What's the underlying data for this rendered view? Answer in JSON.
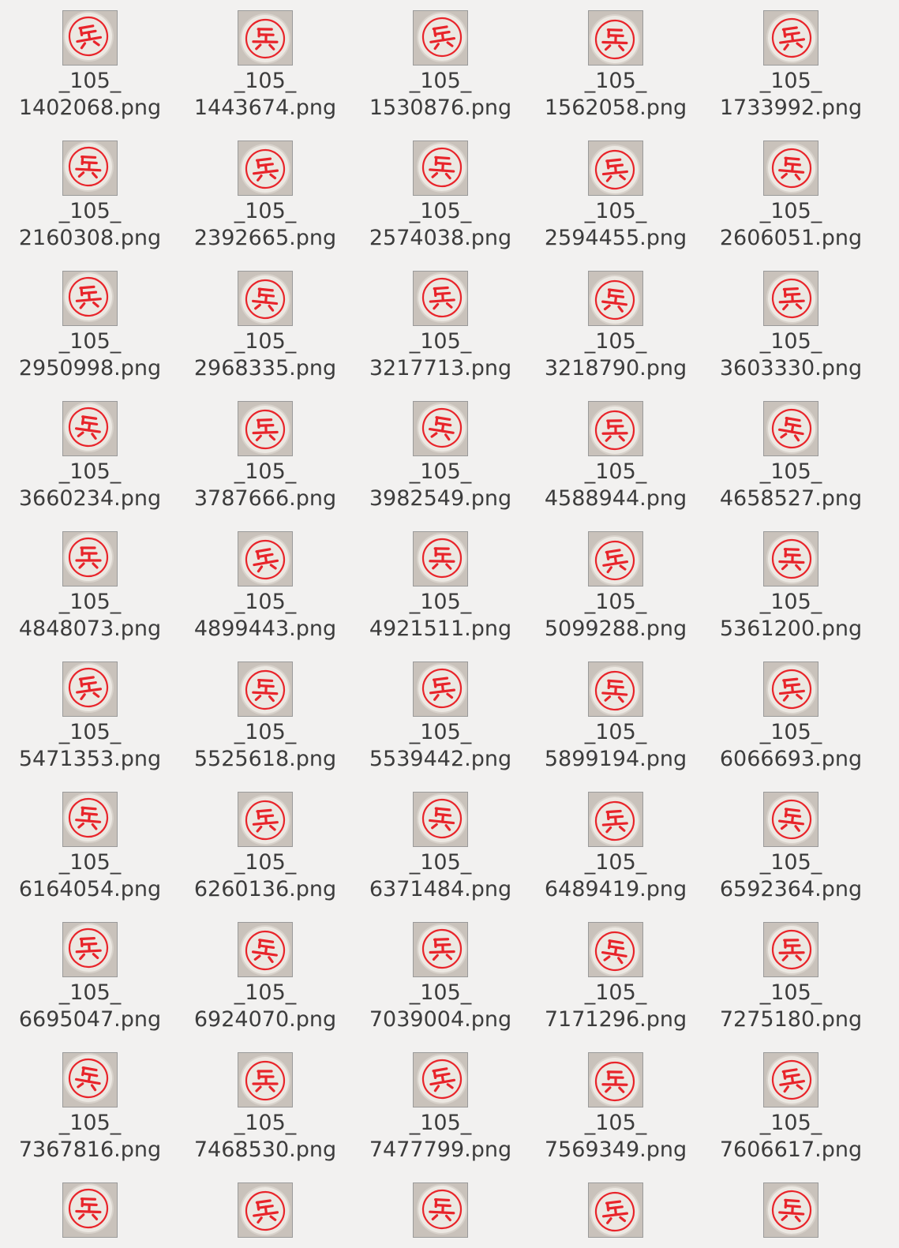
{
  "file_browser": {
    "items": [
      {
        "line1": "_105_",
        "line2": "1402068.png",
        "icon": "chess-piece-bing-thumbnail"
      },
      {
        "line1": "_105_",
        "line2": "1443674.png",
        "icon": "chess-piece-bing-thumbnail"
      },
      {
        "line1": "_105_",
        "line2": "1530876.png",
        "icon": "chess-piece-bing-thumbnail"
      },
      {
        "line1": "_105_",
        "line2": "1562058.png",
        "icon": "chess-piece-bing-thumbnail"
      },
      {
        "line1": "_105_",
        "line2": "1733992.png",
        "icon": "chess-piece-bing-thumbnail"
      },
      {
        "line1": "_105_",
        "line2": "2160308.png",
        "icon": "chess-piece-bing-thumbnail"
      },
      {
        "line1": "_105_",
        "line2": "2392665.png",
        "icon": "chess-piece-bing-thumbnail"
      },
      {
        "line1": "_105_",
        "line2": "2574038.png",
        "icon": "chess-piece-bing-thumbnail"
      },
      {
        "line1": "_105_",
        "line2": "2594455.png",
        "icon": "chess-piece-bing-thumbnail"
      },
      {
        "line1": "_105_",
        "line2": "2606051.png",
        "icon": "chess-piece-bing-thumbnail"
      },
      {
        "line1": "_105_",
        "line2": "2950998.png",
        "icon": "chess-piece-bing-thumbnail"
      },
      {
        "line1": "_105_",
        "line2": "2968335.png",
        "icon": "chess-piece-bing-thumbnail"
      },
      {
        "line1": "_105_",
        "line2": "3217713.png",
        "icon": "chess-piece-bing-thumbnail"
      },
      {
        "line1": "_105_",
        "line2": "3218790.png",
        "icon": "chess-piece-bing-thumbnail"
      },
      {
        "line1": "_105_",
        "line2": "3603330.png",
        "icon": "chess-piece-bing-thumbnail"
      },
      {
        "line1": "_105_",
        "line2": "3660234.png",
        "icon": "chess-piece-bing-thumbnail"
      },
      {
        "line1": "_105_",
        "line2": "3787666.png",
        "icon": "chess-piece-bing-thumbnail"
      },
      {
        "line1": "_105_",
        "line2": "3982549.png",
        "icon": "chess-piece-bing-thumbnail"
      },
      {
        "line1": "_105_",
        "line2": "4588944.png",
        "icon": "chess-piece-bing-thumbnail"
      },
      {
        "line1": "_105_",
        "line2": "4658527.png",
        "icon": "chess-piece-bing-thumbnail"
      },
      {
        "line1": "_105_",
        "line2": "4848073.png",
        "icon": "chess-piece-bing-thumbnail"
      },
      {
        "line1": "_105_",
        "line2": "4899443.png",
        "icon": "chess-piece-bing-thumbnail"
      },
      {
        "line1": "_105_",
        "line2": "4921511.png",
        "icon": "chess-piece-bing-thumbnail"
      },
      {
        "line1": "_105_",
        "line2": "5099288.png",
        "icon": "chess-piece-bing-thumbnail"
      },
      {
        "line1": "_105_",
        "line2": "5361200.png",
        "icon": "chess-piece-bing-thumbnail"
      },
      {
        "line1": "_105_",
        "line2": "5471353.png",
        "icon": "chess-piece-bing-thumbnail"
      },
      {
        "line1": "_105_",
        "line2": "5525618.png",
        "icon": "chess-piece-bing-thumbnail"
      },
      {
        "line1": "_105_",
        "line2": "5539442.png",
        "icon": "chess-piece-bing-thumbnail"
      },
      {
        "line1": "_105_",
        "line2": "5899194.png",
        "icon": "chess-piece-bing-thumbnail"
      },
      {
        "line1": "_105_",
        "line2": "6066693.png",
        "icon": "chess-piece-bing-thumbnail"
      },
      {
        "line1": "_105_",
        "line2": "6164054.png",
        "icon": "chess-piece-bing-thumbnail"
      },
      {
        "line1": "_105_",
        "line2": "6260136.png",
        "icon": "chess-piece-bing-thumbnail"
      },
      {
        "line1": "_105_",
        "line2": "6371484.png",
        "icon": "chess-piece-bing-thumbnail"
      },
      {
        "line1": "_105_",
        "line2": "6489419.png",
        "icon": "chess-piece-bing-thumbnail"
      },
      {
        "line1": "_105_",
        "line2": "6592364.png",
        "icon": "chess-piece-bing-thumbnail"
      },
      {
        "line1": "_105_",
        "line2": "6695047.png",
        "icon": "chess-piece-bing-thumbnail"
      },
      {
        "line1": "_105_",
        "line2": "6924070.png",
        "icon": "chess-piece-bing-thumbnail"
      },
      {
        "line1": "_105_",
        "line2": "7039004.png",
        "icon": "chess-piece-bing-thumbnail"
      },
      {
        "line1": "_105_",
        "line2": "7171296.png",
        "icon": "chess-piece-bing-thumbnail"
      },
      {
        "line1": "_105_",
        "line2": "7275180.png",
        "icon": "chess-piece-bing-thumbnail"
      },
      {
        "line1": "_105_",
        "line2": "7367816.png",
        "icon": "chess-piece-bing-thumbnail"
      },
      {
        "line1": "_105_",
        "line2": "7468530.png",
        "icon": "chess-piece-bing-thumbnail"
      },
      {
        "line1": "_105_",
        "line2": "7477799.png",
        "icon": "chess-piece-bing-thumbnail"
      },
      {
        "line1": "_105_",
        "line2": "7569349.png",
        "icon": "chess-piece-bing-thumbnail"
      },
      {
        "line1": "_105_",
        "line2": "7606617.png",
        "icon": "chess-piece-bing-thumbnail"
      },
      {
        "line1": "",
        "line2": "",
        "icon": "chess-piece-bing-thumbnail"
      },
      {
        "line1": "",
        "line2": "",
        "icon": "chess-piece-bing-thumbnail"
      },
      {
        "line1": "",
        "line2": "",
        "icon": "chess-piece-bing-thumbnail"
      },
      {
        "line1": "",
        "line2": "",
        "icon": "chess-piece-bing-thumbnail"
      },
      {
        "line1": "",
        "line2": "",
        "icon": "chess-piece-bing-thumbnail"
      }
    ]
  },
  "colors": {
    "background": "#f2f1f0",
    "piece_face": "#ece8e2",
    "piece_red": "#e8242a",
    "text": "#3c3c3c"
  }
}
